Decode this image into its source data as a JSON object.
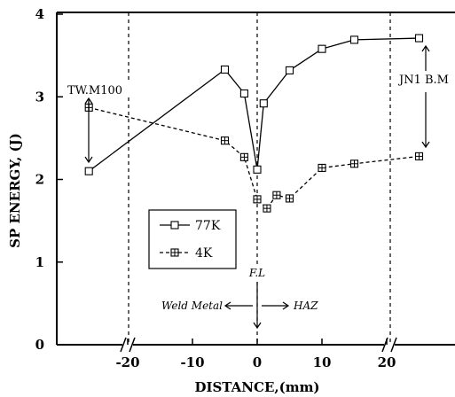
{
  "chart_data": {
    "type": "line",
    "xlabel": "DISTANCE,(mm)",
    "ylabel": "SP ENERGY, (J)",
    "x_ticks": [
      "-20",
      "-10",
      "0",
      "10",
      "20"
    ],
    "y_ticks": [
      "0",
      "1",
      "2",
      "3",
      "4"
    ],
    "xlim": [
      -27,
      27
    ],
    "ylim": [
      0,
      4
    ],
    "axis_break": "yes",
    "series": [
      {
        "name": "77K",
        "x": [
          -26,
          -5,
          -2,
          0,
          1,
          5,
          10,
          15,
          25
        ],
        "y": [
          2.1,
          3.33,
          3.04,
          2.12,
          2.92,
          3.32,
          3.58,
          3.69,
          3.71
        ]
      },
      {
        "name": "4K",
        "x": [
          -26,
          -5,
          -2,
          0,
          1.5,
          3,
          5,
          10,
          15,
          25
        ],
        "y": [
          2.87,
          2.47,
          2.27,
          1.76,
          1.65,
          1.81,
          1.77,
          2.14,
          2.19,
          2.28
        ]
      }
    ],
    "annotations": {
      "left": "TW.M100",
      "right": "JN1 B.M",
      "fusion_line": "F.L",
      "weld_metal": "Weld Metal",
      "haz": "HAZ"
    }
  }
}
